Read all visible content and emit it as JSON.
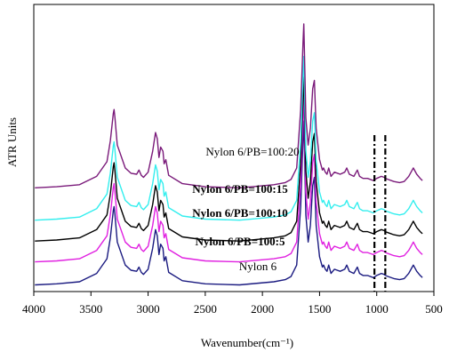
{
  "chart_data": {
    "type": "line",
    "xlabel": "Wavenumber(cm⁻¹)",
    "ylabel": "ATR Units",
    "xlim": [
      4000,
      600
    ],
    "x_reversed": true,
    "xticks": [
      4000,
      3500,
      3000,
      2500,
      2000,
      1500,
      1000,
      500
    ],
    "y_tick_labels": false,
    "grid": false,
    "reference_lines": [
      {
        "x": 1020,
        "style": "dash-dot",
        "color": "#000000"
      },
      {
        "x": 925,
        "style": "dash-dot",
        "color": "#000000"
      }
    ],
    "series": [
      {
        "label": "Nylon 6",
        "color": "#1a1a80",
        "bold": false,
        "baseline": 0,
        "x": [
          3990,
          3800,
          3600,
          3450,
          3360,
          3330,
          3305,
          3298,
          3290,
          3270,
          3200,
          3150,
          3100,
          3080,
          3060,
          3040,
          3000,
          2960,
          2935,
          2920,
          2905,
          2890,
          2870,
          2860,
          2845,
          2820,
          2700,
          2500,
          2200,
          1900,
          1800,
          1750,
          1700,
          1665,
          1645,
          1638,
          1632,
          1620,
          1600,
          1580,
          1560,
          1545,
          1538,
          1530,
          1500,
          1475,
          1465,
          1450,
          1435,
          1420,
          1400,
          1370,
          1320,
          1280,
          1262,
          1240,
          1200,
          1170,
          1150,
          1120,
          1080,
          1030,
          1000,
          960,
          935,
          925,
          900,
          850,
          800,
          760,
          720,
          690,
          680,
          650,
          620,
          600
        ],
        "y": [
          3,
          4,
          6,
          14,
          28,
          48,
          74,
          78,
          70,
          44,
          22,
          17,
          16,
          20,
          15,
          13,
          18,
          38,
          56,
          50,
          32,
          42,
          38,
          26,
          30,
          15,
          7,
          4,
          3,
          6,
          8,
          11,
          22,
          78,
          142,
          160,
          130,
          70,
          44,
          60,
          98,
          106,
          85,
          60,
          30,
          20,
          22,
          18,
          16,
          22,
          14,
          18,
          16,
          18,
          22,
          16,
          14,
          20,
          14,
          12,
          12,
          10,
          12,
          14,
          13,
          12,
          11,
          9,
          8,
          9,
          14,
          20,
          22,
          16,
          12,
          10
        ]
      },
      {
        "label": "Nylon 6/PB=100:5",
        "color": "#e020e0",
        "bold": true,
        "baseline": 22,
        "x": [
          3990,
          3800,
          3600,
          3450,
          3360,
          3330,
          3305,
          3298,
          3290,
          3270,
          3200,
          3150,
          3100,
          3080,
          3060,
          3040,
          3000,
          2960,
          2935,
          2920,
          2905,
          2890,
          2870,
          2860,
          2845,
          2820,
          2700,
          2500,
          2200,
          1900,
          1800,
          1750,
          1700,
          1665,
          1645,
          1638,
          1632,
          1620,
          1600,
          1580,
          1560,
          1545,
          1538,
          1530,
          1500,
          1475,
          1465,
          1450,
          1435,
          1420,
          1400,
          1370,
          1320,
          1280,
          1262,
          1240,
          1200,
          1170,
          1150,
          1120,
          1080,
          1030,
          1000,
          960,
          935,
          925,
          900,
          850,
          800,
          760,
          720,
          690,
          680,
          650,
          620,
          600
        ],
        "y": [
          3,
          4,
          6,
          14,
          28,
          48,
          74,
          78,
          70,
          44,
          22,
          17,
          16,
          20,
          15,
          13,
          18,
          38,
          56,
          50,
          32,
          42,
          38,
          26,
          30,
          15,
          7,
          4,
          3,
          6,
          8,
          11,
          22,
          78,
          142,
          160,
          130,
          70,
          44,
          60,
          98,
          106,
          85,
          60,
          30,
          20,
          22,
          18,
          16,
          22,
          14,
          18,
          16,
          18,
          22,
          16,
          14,
          20,
          14,
          12,
          12,
          10,
          12,
          14,
          13,
          12,
          11,
          9,
          8,
          9,
          14,
          20,
          22,
          16,
          12,
          10
        ]
      },
      {
        "label": "Nylon 6/PB=100:10",
        "color": "#000000",
        "bold": true,
        "baseline": 42,
        "x": [
          3990,
          3800,
          3600,
          3450,
          3360,
          3330,
          3305,
          3298,
          3290,
          3270,
          3200,
          3150,
          3100,
          3080,
          3060,
          3040,
          3000,
          2960,
          2935,
          2920,
          2905,
          2890,
          2870,
          2860,
          2845,
          2820,
          2700,
          2500,
          2200,
          1900,
          1800,
          1750,
          1700,
          1665,
          1645,
          1638,
          1632,
          1620,
          1600,
          1580,
          1560,
          1545,
          1538,
          1530,
          1500,
          1475,
          1465,
          1450,
          1435,
          1420,
          1400,
          1370,
          1320,
          1280,
          1262,
          1240,
          1200,
          1170,
          1150,
          1120,
          1080,
          1030,
          1000,
          960,
          935,
          925,
          900,
          850,
          800,
          760,
          720,
          690,
          680,
          650,
          620,
          600
        ],
        "y": [
          3,
          4,
          6,
          14,
          28,
          48,
          74,
          78,
          70,
          44,
          22,
          17,
          16,
          20,
          15,
          13,
          18,
          38,
          56,
          50,
          32,
          42,
          38,
          26,
          30,
          15,
          7,
          4,
          3,
          6,
          8,
          11,
          22,
          78,
          142,
          160,
          130,
          70,
          44,
          60,
          98,
          106,
          85,
          60,
          30,
          20,
          22,
          18,
          16,
          22,
          14,
          18,
          16,
          18,
          22,
          16,
          14,
          20,
          14,
          12,
          12,
          10,
          12,
          14,
          13,
          12,
          11,
          9,
          8,
          9,
          14,
          20,
          22,
          16,
          12,
          10
        ]
      },
      {
        "label": "Nylon 6/PB=100:15",
        "color": "#33eeee",
        "bold": true,
        "baseline": 62,
        "x": [
          3990,
          3800,
          3600,
          3450,
          3360,
          3330,
          3305,
          3298,
          3290,
          3270,
          3200,
          3150,
          3100,
          3080,
          3060,
          3040,
          3000,
          2960,
          2935,
          2920,
          2905,
          2890,
          2870,
          2860,
          2845,
          2820,
          2700,
          2500,
          2200,
          1900,
          1800,
          1750,
          1700,
          1665,
          1645,
          1638,
          1632,
          1620,
          1600,
          1580,
          1560,
          1545,
          1538,
          1530,
          1500,
          1475,
          1465,
          1450,
          1435,
          1420,
          1400,
          1370,
          1320,
          1280,
          1262,
          1240,
          1200,
          1170,
          1150,
          1120,
          1080,
          1030,
          1000,
          960,
          935,
          925,
          900,
          850,
          800,
          760,
          720,
          690,
          680,
          650,
          620,
          600
        ],
        "y": [
          3,
          4,
          6,
          14,
          28,
          48,
          74,
          78,
          70,
          44,
          22,
          17,
          16,
          20,
          15,
          13,
          18,
          38,
          56,
          50,
          32,
          42,
          38,
          26,
          30,
          15,
          7,
          4,
          3,
          6,
          8,
          11,
          22,
          78,
          142,
          160,
          130,
          70,
          44,
          60,
          98,
          106,
          85,
          60,
          30,
          20,
          22,
          18,
          16,
          22,
          14,
          18,
          16,
          18,
          22,
          16,
          14,
          20,
          14,
          12,
          12,
          10,
          12,
          14,
          13,
          12,
          11,
          9,
          8,
          9,
          14,
          20,
          22,
          16,
          12,
          10
        ]
      },
      {
        "label": "Nylon 6/PB=100:20",
        "color": "#7a1a7a",
        "bold": false,
        "baseline": 93,
        "x": [
          3990,
          3800,
          3600,
          3450,
          3360,
          3330,
          3305,
          3298,
          3290,
          3270,
          3200,
          3150,
          3100,
          3080,
          3060,
          3040,
          3000,
          2960,
          2935,
          2920,
          2905,
          2890,
          2870,
          2860,
          2845,
          2820,
          2700,
          2500,
          2200,
          1900,
          1800,
          1750,
          1700,
          1665,
          1645,
          1638,
          1632,
          1620,
          1600,
          1580,
          1560,
          1545,
          1538,
          1530,
          1500,
          1475,
          1465,
          1450,
          1435,
          1420,
          1400,
          1370,
          1320,
          1280,
          1262,
          1240,
          1200,
          1170,
          1150,
          1120,
          1080,
          1030,
          1000,
          960,
          935,
          925,
          900,
          850,
          800,
          760,
          720,
          690,
          680,
          650,
          620,
          600
        ],
        "y": [
          3,
          4,
          6,
          14,
          28,
          48,
          74,
          78,
          70,
          44,
          22,
          17,
          16,
          20,
          15,
          13,
          18,
          38,
          56,
          50,
          32,
          42,
          38,
          26,
          30,
          15,
          7,
          4,
          3,
          6,
          8,
          11,
          22,
          78,
          142,
          160,
          130,
          70,
          44,
          60,
          98,
          106,
          85,
          60,
          30,
          20,
          22,
          18,
          16,
          22,
          14,
          18,
          16,
          18,
          22,
          16,
          14,
          20,
          14,
          12,
          12,
          10,
          12,
          14,
          13,
          12,
          11,
          9,
          8,
          9,
          14,
          20,
          22,
          16,
          12,
          10
        ]
      }
    ]
  }
}
